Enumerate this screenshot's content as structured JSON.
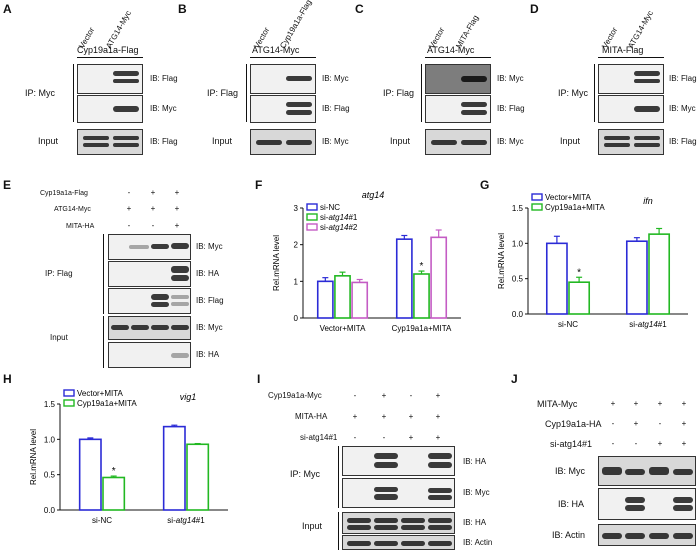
{
  "panels": {
    "A": {
      "letter": "A",
      "lanes": [
        "Vector",
        "ATG14-Myc"
      ],
      "bait": "Cyp19a1a-Flag",
      "ip": "IP: Myc",
      "rows": [
        "IB: Flag",
        "IB: Myc",
        "IB: Flag"
      ],
      "input": "Input"
    },
    "B": {
      "letter": "B",
      "lanes": [
        "Vector",
        "Cyp19a1a-Flag"
      ],
      "bait": "ATG14-Myc",
      "ip": "IP: Flag",
      "rows": [
        "IB: Myc",
        "IB: Flag",
        "IB: Myc"
      ],
      "input": "Input"
    },
    "C": {
      "letter": "C",
      "lanes": [
        "Vector",
        "MITA-Flag"
      ],
      "bait": "ATG14-Myc",
      "ip": "IP: Flag",
      "rows": [
        "IB: Myc",
        "IB: Flag",
        "IB: Myc"
      ],
      "input": "Input"
    },
    "D": {
      "letter": "D",
      "lanes": [
        "Vector",
        "ATG14-Myc"
      ],
      "bait": "MITA-Flag",
      "ip": "IP: Myc",
      "rows": [
        "IB: Flag",
        "IB: Myc",
        "IB: Flag"
      ],
      "input": "Input"
    },
    "E": {
      "letter": "E",
      "conds": [
        "Cyp19a1a-Flag",
        "ATG14-Myc",
        "MITA-HA"
      ],
      "signs": [
        [
          "-",
          "+",
          "+"
        ],
        [
          "+",
          "+",
          "+"
        ],
        [
          "-",
          "-",
          "+"
        ]
      ],
      "ip": "IP: Flag",
      "input": "Input",
      "rows": [
        "IB: Myc",
        "IB: HA",
        "IB: Flag",
        "IB: Myc",
        "IB: HA"
      ]
    },
    "I": {
      "letter": "I",
      "conds": [
        "Cyp19a1a-Myc",
        "MITA-HA",
        "si-atg14#1"
      ],
      "signs": [
        [
          "-",
          "+",
          "-",
          "+"
        ],
        [
          "+",
          "+",
          "+",
          "+"
        ],
        [
          "-",
          "-",
          "+",
          "+"
        ]
      ],
      "ip": "IP: Myc",
      "input": "Input",
      "rows": [
        "IB: HA",
        "IB: Myc",
        "IB: HA",
        "IB: Actin"
      ]
    },
    "J": {
      "letter": "J",
      "conds": [
        "MITA-Myc",
        "Cyp19a1a-HA",
        "si-atg14#1"
      ],
      "signs": [
        [
          "+",
          "+",
          "+",
          "+"
        ],
        [
          "-",
          "+",
          "-",
          "+"
        ],
        [
          "-",
          "-",
          "+",
          "+"
        ]
      ],
      "rows": [
        "IB: Myc",
        "IB: HA",
        "IB: Actin"
      ]
    }
  },
  "chart_data": [
    {
      "id": "F",
      "letter": "F",
      "type": "bar",
      "title": "atg14",
      "ylabel": "Rel.mRNA level",
      "ylim": [
        0,
        3
      ],
      "yticks": [
        0,
        1,
        2,
        3
      ],
      "categories": [
        "Vector+MITA",
        "Cyp19a1a+MITA"
      ],
      "series": [
        {
          "name": "si-NC",
          "color": "#2b2bd6",
          "values": [
            1.0,
            2.15
          ],
          "err": [
            0.1,
            0.1
          ]
        },
        {
          "name": "si-atg14#1",
          "color": "#22b822",
          "values": [
            1.15,
            1.2
          ],
          "err": [
            0.1,
            0.08
          ]
        },
        {
          "name": "si-atg14#2",
          "color": "#c45cc4",
          "values": [
            0.97,
            2.2
          ],
          "err": [
            0.08,
            0.2
          ]
        }
      ],
      "annotations": [
        "*"
      ]
    },
    {
      "id": "G",
      "letter": "G",
      "type": "bar",
      "title": "ifn",
      "ylabel": "Rel.mRNA level",
      "ylim": [
        0,
        1.5
      ],
      "yticks": [
        0.0,
        0.5,
        1.0,
        1.5
      ],
      "categories": [
        "si-NC",
        "si-atg14#1"
      ],
      "series": [
        {
          "name": "Vector+MITA",
          "color": "#2b2bd6",
          "values": [
            1.0,
            1.03
          ],
          "err": [
            0.1,
            0.05
          ]
        },
        {
          "name": "Cyp19a1a+MITA",
          "color": "#22b822",
          "values": [
            0.45,
            1.13
          ],
          "err": [
            0.07,
            0.08
          ]
        }
      ],
      "annotations": [
        "*"
      ]
    },
    {
      "id": "H",
      "letter": "H",
      "type": "bar",
      "title": "vig1",
      "ylabel": "Rel.mRNA level",
      "ylim": [
        0,
        1.5
      ],
      "yticks": [
        0.0,
        0.5,
        1.0,
        1.5
      ],
      "categories": [
        "si-NC",
        "si-atg14#1"
      ],
      "series": [
        {
          "name": "Vector+MITA",
          "color": "#2b2bd6",
          "values": [
            1.0,
            1.18
          ],
          "err": [
            0.02,
            0.02
          ]
        },
        {
          "name": "Cyp19a1a+MITA",
          "color": "#22b822",
          "values": [
            0.46,
            0.93
          ],
          "err": [
            0.02,
            0.01
          ]
        }
      ],
      "annotations": [
        "*"
      ]
    }
  ]
}
